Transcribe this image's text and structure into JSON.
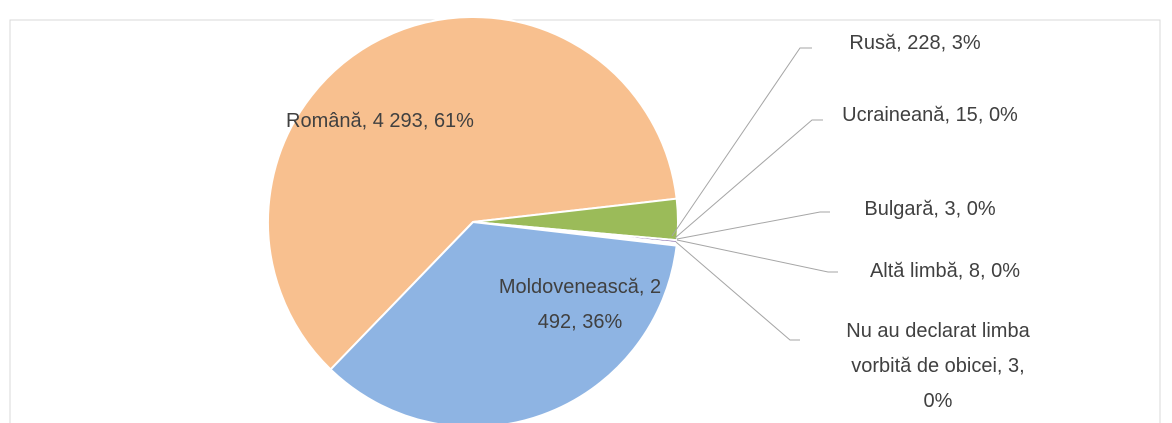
{
  "chart_data": {
    "type": "pie",
    "categories": [
      "Română",
      "Rusă",
      "Ucraineană",
      "Bulgară",
      "Altă limbă",
      "Nu au declarat limba vorbită de obicei",
      "Moldovenească"
    ],
    "values": [
      4293,
      228,
      15,
      3,
      8,
      3,
      2492
    ],
    "value_labels": [
      "4 293",
      "228",
      "15",
      "3",
      "8",
      "3",
      "2 492"
    ],
    "percents": [
      61,
      3,
      0,
      0,
      0,
      0,
      36
    ],
    "percent_labels": [
      "61%",
      "3%",
      "0%",
      "0%",
      "0%",
      "0%",
      "36%"
    ],
    "colors": [
      "#F8C08F",
      "#9BBB59",
      "#8064A2",
      "#4BACC6",
      "#F79646",
      "#2C4D75",
      "#8EB4E3"
    ]
  }
}
